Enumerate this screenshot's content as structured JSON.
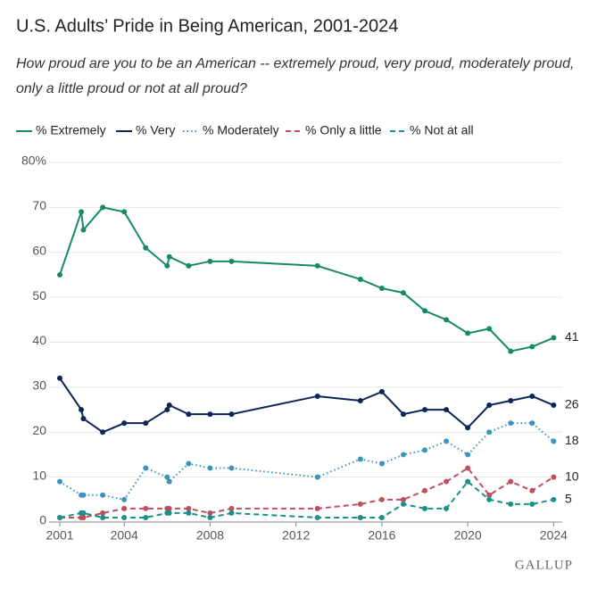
{
  "chart_data": {
    "type": "line",
    "title": "U.S. Adults’ Pride in Being American, 2001-2024",
    "subtitle": "How proud are you to be an American -- extremely proud, very proud, moderately proud, only a little proud or not at all proud?",
    "source": "GALLUP",
    "x": [
      2001,
      2002,
      2002.1,
      2003,
      2004,
      2005,
      2006,
      2006.1,
      2007,
      2008,
      2009,
      2013,
      2015,
      2016,
      2017,
      2018,
      2019,
      2020,
      2021,
      2022,
      2023,
      2024
    ],
    "series": [
      {
        "name": "% Extremely",
        "color": "#168b5f",
        "style": "solid",
        "values": [
          55,
          69,
          65,
          70,
          69,
          61,
          57,
          59,
          57,
          58,
          58,
          57,
          54,
          52,
          51,
          47,
          45,
          42,
          43,
          38,
          39,
          41
        ]
      },
      {
        "name": "% Very",
        "color": "#0c2457",
        "style": "solid",
        "values": [
          32,
          25,
          23,
          20,
          22,
          22,
          25,
          26,
          24,
          24,
          24,
          28,
          27,
          29,
          24,
          25,
          25,
          21,
          26,
          27,
          28,
          26
        ]
      },
      {
        "name": "% Moderately",
        "color": "#3a93c0",
        "style": "dotted",
        "values": [
          9,
          6,
          6,
          6,
          5,
          12,
          10,
          9,
          13,
          12,
          12,
          10,
          14,
          13,
          15,
          16,
          18,
          15,
          20,
          22,
          22,
          18
        ]
      },
      {
        "name": "% Only a little",
        "color": "#c04e5d",
        "style": "dashed",
        "values": [
          1,
          1,
          1,
          2,
          3,
          3,
          3,
          3,
          3,
          2,
          3,
          3,
          4,
          5,
          5,
          7,
          9,
          12,
          6,
          9,
          7,
          10
        ]
      },
      {
        "name": "% Not at all",
        "color": "#19908a",
        "style": "dashed",
        "values": [
          1,
          2,
          2,
          1,
          1,
          1,
          2,
          2,
          2,
          1,
          2,
          1,
          1,
          1,
          4,
          3,
          3,
          9,
          5,
          4,
          4,
          5
        ]
      }
    ],
    "xlim": [
      2000.5,
      2024.4
    ],
    "xticks": [
      2001,
      2004,
      2008,
      2012,
      2016,
      2020,
      2024
    ],
    "ylim": [
      0,
      80
    ],
    "yticks": [
      0,
      10,
      20,
      30,
      40,
      50,
      60,
      70,
      {
        "value": 80,
        "label": "80%"
      }
    ],
    "grid": true
  }
}
